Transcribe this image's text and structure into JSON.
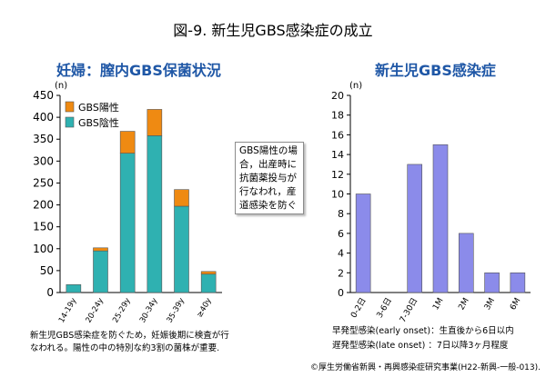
{
  "title": "図-9.  新生児GBS感染症の成立",
  "left_panel": {
    "title": "妊婦：膣内GBS保菌状況",
    "note": "GBS陽性の場合，出産時に抗菌薬投与が行なわれ，産道感染を防ぐ",
    "caption_line1": "新生児GBS感染症を防ぐため，妊娠後期に検査が行",
    "caption_line2": "なわれる。陽性の中の特別な約3割の菌株が重要."
  },
  "right_panel": {
    "title": "新生児GBS感染症",
    "caption_line1": "早発型感染(early onset)：生直後から6日以内",
    "caption_line2": "遅発型感染(late onset) ：7日以降3ヶ月程度"
  },
  "copyright": "©厚生労働省新興・再興感染症研究事業(H22-新興-一般-013).",
  "colors": {
    "positive": "#ef8a12",
    "negative": "#2fb1b1",
    "infant": "#8b8bea"
  },
  "chart_data": [
    {
      "type": "bar",
      "stacked": true,
      "ylabel": "(n)",
      "ylim": [
        0,
        450
      ],
      "yticks": [
        0,
        50,
        100,
        150,
        200,
        250,
        300,
        350,
        400,
        450
      ],
      "categories": [
        "14-19y",
        "20-24y",
        "25-29y",
        "30-34y",
        "35-39y",
        "≥40y"
      ],
      "series": [
        {
          "name": "GBS陰性",
          "values": [
            18,
            95,
            318,
            358,
            197,
            42
          ]
        },
        {
          "name": "GBS陽性",
          "values": [
            0,
            7,
            50,
            60,
            38,
            6
          ]
        }
      ],
      "legend_position": "top-left",
      "grid": false
    },
    {
      "type": "bar",
      "ylabel": "(n)",
      "ylim": [
        0,
        20
      ],
      "yticks": [
        0,
        2,
        4,
        6,
        8,
        10,
        12,
        14,
        16,
        18,
        20
      ],
      "categories": [
        "0-2日",
        "3-6日",
        "7-30日",
        "1M",
        "2M",
        "3M",
        "6M"
      ],
      "series": [
        {
          "values": [
            10,
            0,
            13,
            15,
            6,
            2,
            2
          ]
        }
      ],
      "grid": false
    }
  ]
}
